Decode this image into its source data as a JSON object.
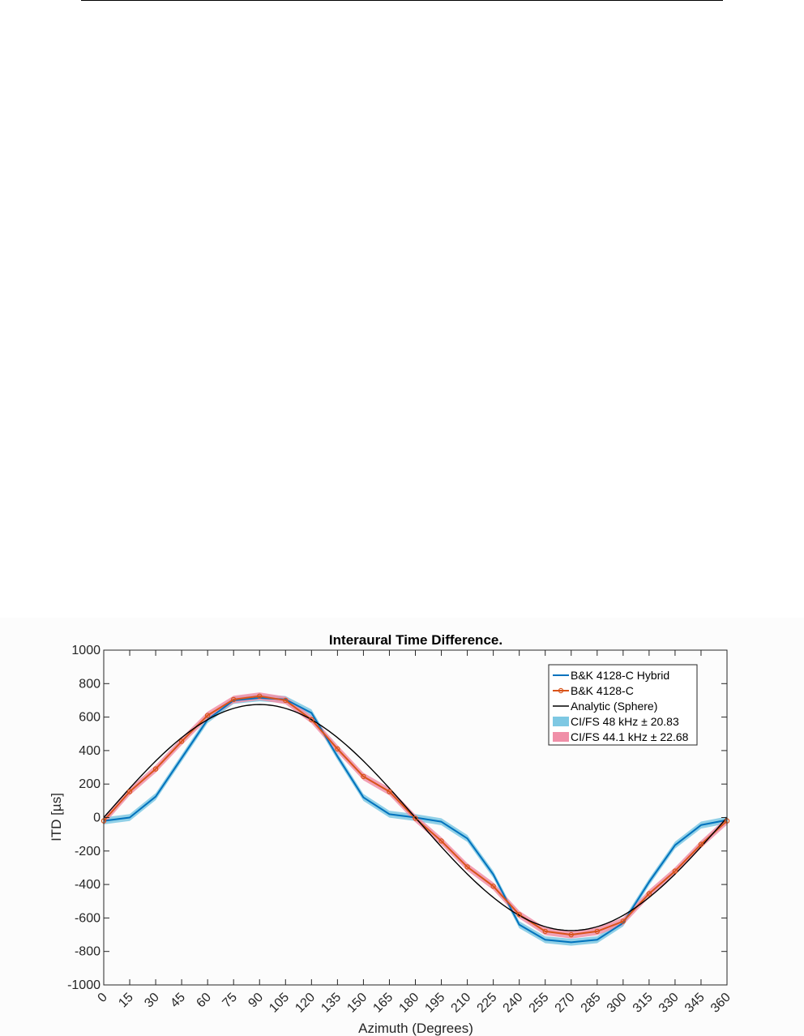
{
  "chart_data": {
    "type": "line",
    "title": "Interaural Time Difference.",
    "xlabel": "Azimuth (Degrees)",
    "ylabel": "ITD [µs]",
    "xlim": [
      0,
      360
    ],
    "ylim": [
      -1000,
      1000
    ],
    "x_ticks": [
      0,
      15,
      30,
      45,
      60,
      75,
      90,
      105,
      120,
      135,
      150,
      165,
      180,
      195,
      210,
      225,
      240,
      255,
      270,
      285,
      300,
      315,
      330,
      345,
      360
    ],
    "y_ticks": [
      1000,
      800,
      600,
      400,
      200,
      0,
      -200,
      -400,
      -600,
      -800,
      -1000
    ],
    "grid": false,
    "legend_position": "top-right",
    "x": [
      0,
      15,
      30,
      45,
      60,
      75,
      90,
      105,
      120,
      135,
      150,
      165,
      180,
      195,
      210,
      225,
      240,
      255,
      270,
      285,
      300,
      315,
      330,
      345,
      360
    ],
    "series": [
      {
        "name": "B&K 4128-C Hybrid",
        "style": "line",
        "color": "#0072bd",
        "values": [
          -20,
          0,
          125,
          355,
          585,
          700,
          715,
          705,
          625,
          365,
          120,
          20,
          0,
          -25,
          -125,
          -340,
          -640,
          -730,
          -745,
          -730,
          -630,
          -385,
          -165,
          -45,
          -15
        ]
      },
      {
        "name": "B&K 4128-C",
        "style": "line-with-markers",
        "color": "#d95319",
        "values": [
          -20,
          155,
          290,
          455,
          610,
          705,
          725,
          700,
          585,
          410,
          245,
          155,
          -5,
          -140,
          -295,
          -410,
          -580,
          -680,
          -700,
          -680,
          -620,
          -455,
          -320,
          -160,
          -20
        ]
      },
      {
        "name": "Analytic (Sphere)",
        "style": "line",
        "color": "#000000",
        "amplitude": 675
      },
      {
        "name": "CI/FS   48  kHz ± 20.83",
        "style": "band",
        "color": "#7ec8e3",
        "band_for": "B&K 4128-C Hybrid",
        "halfwidth": 20.83
      },
      {
        "name": "CI/FS 44.1 kHz ± 22.68",
        "style": "band",
        "color": "#f08fa8",
        "band_for": "B&K 4128-C",
        "halfwidth": 22.68
      }
    ]
  }
}
